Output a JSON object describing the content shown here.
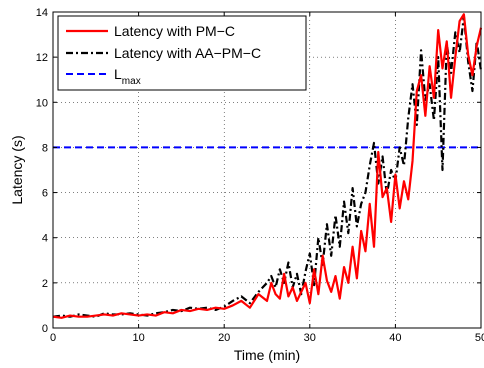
{
  "chart_data": {
    "type": "line",
    "title": "",
    "xlabel": "Time (min)",
    "ylabel": "Latency (s)",
    "xlim": [
      0,
      50
    ],
    "ylim": [
      0,
      14
    ],
    "xticks": [
      0,
      10,
      20,
      30,
      40,
      50
    ],
    "yticks": [
      0,
      2,
      4,
      6,
      8,
      10,
      12,
      14
    ],
    "grid": true,
    "legend_position": "top-left",
    "series": [
      {
        "name": "Latency with PM−C",
        "color": "#ff0000",
        "style": "solid",
        "x": [
          0,
          1,
          2,
          3,
          4,
          5,
          6,
          7,
          8,
          9,
          10,
          11,
          12,
          13,
          14,
          15,
          16,
          17,
          18,
          19,
          20,
          21,
          22,
          23,
          24,
          25,
          25.5,
          26,
          26.5,
          27,
          27.5,
          28,
          28.5,
          29,
          29.5,
          30,
          30.5,
          31,
          31.5,
          32,
          32.5,
          33,
          33.5,
          34,
          34.5,
          35,
          35.5,
          36,
          36.5,
          37,
          37.5,
          38,
          38.5,
          39,
          39.5,
          40,
          40.5,
          41,
          41.5,
          42,
          42.5,
          43,
          43.5,
          44,
          44.5,
          45,
          45.5,
          46,
          46.5,
          47,
          47.5,
          48,
          48.5,
          49,
          49.5,
          50
        ],
        "y": [
          0.5,
          0.45,
          0.55,
          0.5,
          0.5,
          0.55,
          0.6,
          0.55,
          0.65,
          0.6,
          0.55,
          0.6,
          0.55,
          0.7,
          0.65,
          0.8,
          0.75,
          0.85,
          0.8,
          0.9,
          0.85,
          1.0,
          1.2,
          0.9,
          1.5,
          1.2,
          2.0,
          1.5,
          1.3,
          2.4,
          1.4,
          1.8,
          1.2,
          1.6,
          2.0,
          1.1,
          2.6,
          1.5,
          3.2,
          2.1,
          1.6,
          2.3,
          1.3,
          2.7,
          2.0,
          3.6,
          2.2,
          4.3,
          3.4,
          5.5,
          3.6,
          7.8,
          5.8,
          6.2,
          4.7,
          6.8,
          5.3,
          6.5,
          5.7,
          7.4,
          10.5,
          11.2,
          9.4,
          11.6,
          10.2,
          13.2,
          11.5,
          12.7,
          10.2,
          12.0,
          13.6,
          13.9,
          12.1,
          11.2,
          12.5,
          13.3
        ]
      },
      {
        "name": "Latency with AA−PM−C",
        "color": "#000000",
        "style": "dashdot",
        "x": [
          0,
          1,
          2,
          3,
          4,
          5,
          6,
          7,
          8,
          9,
          10,
          11,
          12,
          13,
          14,
          15,
          16,
          17,
          18,
          19,
          20,
          21,
          22,
          23,
          24,
          25,
          25.5,
          26,
          26.5,
          27,
          27.5,
          28,
          28.5,
          29,
          29.5,
          30,
          30.5,
          31,
          31.5,
          32,
          32.5,
          33,
          33.5,
          34,
          34.5,
          35,
          35.5,
          36,
          36.5,
          37,
          37.5,
          38,
          38.5,
          39,
          39.5,
          40,
          40.5,
          41,
          41.5,
          42,
          42.5,
          43,
          43.5,
          44,
          44.5,
          45,
          45.5,
          46,
          46.5,
          47,
          47.5,
          48,
          48.5,
          49,
          49.5,
          50
        ],
        "y": [
          0.5,
          0.55,
          0.5,
          0.6,
          0.55,
          0.5,
          0.65,
          0.6,
          0.6,
          0.65,
          0.6,
          0.55,
          0.65,
          0.7,
          0.8,
          0.75,
          0.9,
          0.85,
          0.9,
          0.8,
          0.95,
          1.2,
          1.4,
          1.1,
          1.6,
          2.0,
          2.3,
          1.8,
          2.6,
          2.0,
          2.9,
          1.8,
          2.4,
          1.5,
          2.5,
          3.3,
          1.9,
          4.0,
          2.8,
          4.6,
          3.2,
          5.0,
          3.6,
          5.6,
          4.2,
          6.2,
          4.5,
          5.5,
          6.0,
          7.2,
          8.2,
          6.4,
          7.6,
          5.9,
          7.0,
          6.5,
          8.0,
          7.2,
          9.3,
          10.8,
          9.0,
          12.3,
          10.1,
          10.8,
          9.2,
          12.0,
          7.0,
          12.6,
          11.3,
          13.1,
          12.2,
          13.8,
          11.8,
          10.5,
          12.7,
          11.4
        ]
      },
      {
        "name": "L",
        "name_subscript": "max",
        "color": "#0000ff",
        "style": "dashed",
        "x": [
          0,
          50
        ],
        "y": [
          8,
          8
        ]
      }
    ]
  }
}
